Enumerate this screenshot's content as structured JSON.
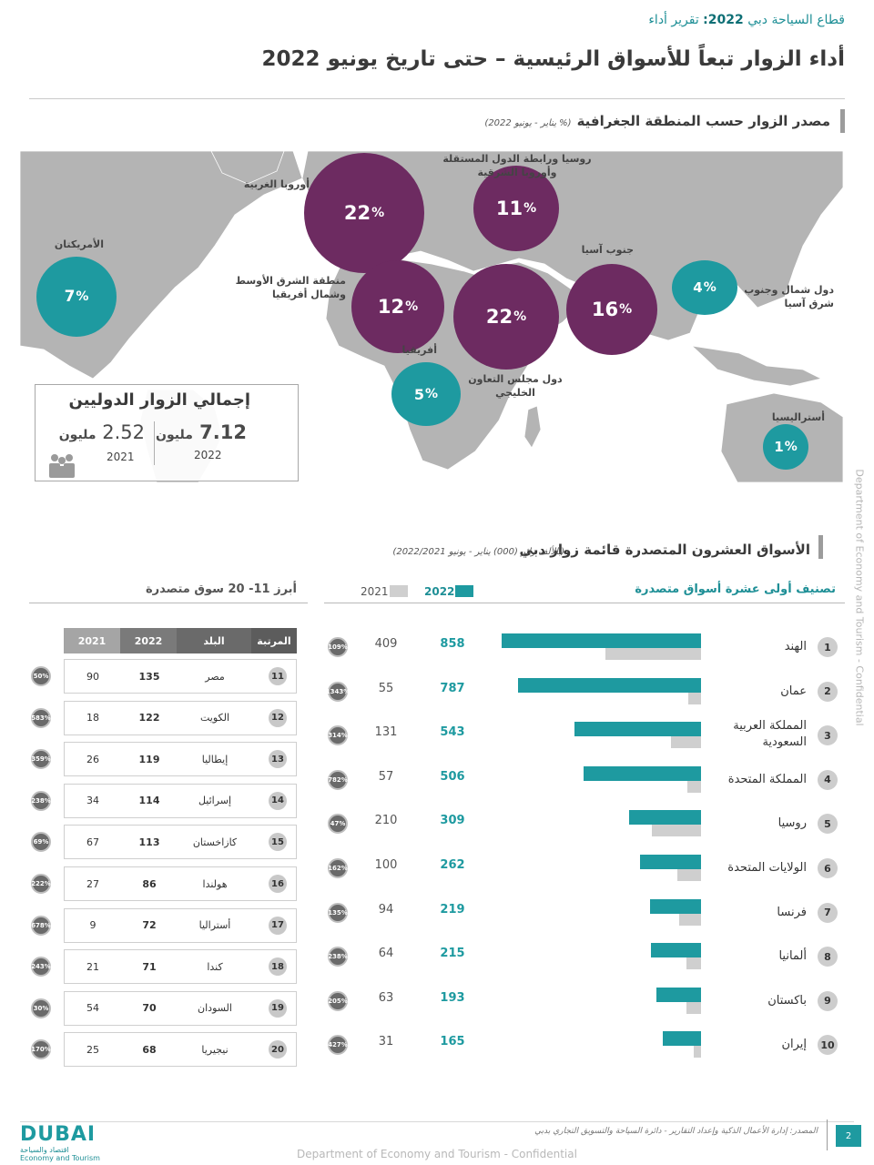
{
  "header": {
    "sector_prefix": "قطاع السياحة دبي",
    "sector_year": "2022:",
    "report_label": "تقرير أداء",
    "title": "أداء الزوار تبعاً للأسواق الرئيسية – حتى تاريخ يونيو 2022"
  },
  "geo_section": {
    "title": "مصدر الزوار حسب المنطقة الجغرافية",
    "note": "(% يناير - يونيو 2022)",
    "regions": [
      {
        "label": "أوروبا الغربية",
        "value": "22",
        "unit": "%",
        "color": "#6d2b61"
      },
      {
        "label": "روسيا ورابطة الدول المستقلة وأوروبا الشرقية",
        "value": "11",
        "unit": "%",
        "color": "#6d2b61"
      },
      {
        "label": "الأمريكتان",
        "value": "7",
        "unit": "%",
        "color": "#1e9aa0"
      },
      {
        "label": "منطقة الشرق الأوسط وشمال أفريقيا",
        "value": "12",
        "unit": "%",
        "color": "#6d2b61"
      },
      {
        "label": "دول مجلس التعاون الخليجي",
        "value": "22",
        "unit": "%",
        "color": "#6d2b61"
      },
      {
        "label": "جنوب آسيا",
        "value": "16",
        "unit": "%",
        "color": "#6d2b61"
      },
      {
        "label": "دول شمال وجنوب شرق آسيا",
        "value": "4",
        "unit": "%",
        "color": "#1e9aa0"
      },
      {
        "label": "أفريقيا",
        "value": "5",
        "unit": "%",
        "color": "#1e9aa0"
      },
      {
        "label": "أستراليسيا",
        "value": "1",
        "unit": "%",
        "color": "#1e9aa0"
      }
    ]
  },
  "totals": {
    "title": "إجمالي الزوار الدوليين",
    "v2022": "7.12",
    "v2021": "2.52",
    "unit": "مليون",
    "y2022": "2022",
    "y2021": "2021"
  },
  "vertical_text": "Department of Economy and Tourism - Confidential",
  "markets_section": {
    "title": "الأسواق العشرون المتصدرة قائمة زوار دبي",
    "note": "(بالألف زائر (000) يناير - يونيو 2022/2021)"
  },
  "table": {
    "title": "أبرز 11- 20 سوق متصدرة",
    "headers": {
      "rank": "المرتبة",
      "country": "البلد",
      "y2022": "2022",
      "y2021": "2021"
    },
    "rows": [
      {
        "rank": "11",
        "country": "مصر",
        "v2022": "135",
        "v2021": "90",
        "growth": "50%"
      },
      {
        "rank": "12",
        "country": "الكويت",
        "v2022": "122",
        "v2021": "18",
        "growth": "583%"
      },
      {
        "rank": "13",
        "country": "إيطاليا",
        "v2022": "119",
        "v2021": "26",
        "growth": "359%"
      },
      {
        "rank": "14",
        "country": "إسرائيل",
        "v2022": "114",
        "v2021": "34",
        "growth": "238%"
      },
      {
        "rank": "15",
        "country": "كازاخستان",
        "v2022": "113",
        "v2021": "67",
        "growth": "69%"
      },
      {
        "rank": "16",
        "country": "هولندا",
        "v2022": "86",
        "v2021": "27",
        "growth": "222%"
      },
      {
        "rank": "17",
        "country": "أستراليا",
        "v2022": "72",
        "v2021": "9",
        "growth": "678%"
      },
      {
        "rank": "18",
        "country": "كندا",
        "v2022": "71",
        "v2021": "21",
        "growth": "243%"
      },
      {
        "rank": "19",
        "country": "السودان",
        "v2022": "70",
        "v2021": "54",
        "growth": "30%"
      },
      {
        "rank": "20",
        "country": "نيجيريا",
        "v2022": "68",
        "v2021": "25",
        "growth": "170%"
      }
    ]
  },
  "chart_data": {
    "type": "bar",
    "title": "تصنيف أولى عشرة أسواق متصدرة",
    "legend": [
      "2022",
      "2021"
    ],
    "colors": {
      "2022": "#1e9aa0",
      "2021": "#cfcfcf"
    },
    "max_value": 900,
    "categories": [
      "الهند",
      "عمان",
      "المملكة العربية السعودية",
      "المملكة المتحدة",
      "روسيا",
      "الولايات المتحدة",
      "فرنسا",
      "ألمانيا",
      "باكستان",
      "إيران"
    ],
    "ranks": [
      "1",
      "2",
      "3",
      "4",
      "5",
      "6",
      "7",
      "8",
      "9",
      "10"
    ],
    "series": [
      {
        "name": "2022",
        "values": [
          858,
          787,
          543,
          506,
          309,
          262,
          219,
          215,
          193,
          165
        ]
      },
      {
        "name": "2021",
        "values": [
          409,
          55,
          131,
          57,
          210,
          100,
          94,
          64,
          63,
          31
        ]
      }
    ],
    "growth": [
      "109%",
      "1343%",
      "314%",
      "782%",
      "47%",
      "162%",
      "135%",
      "238%",
      "205%",
      "427%"
    ]
  },
  "footer": {
    "source": "المصدر: إدارة الأعمال الذكية وإعداد التقارير - دائرة السياحة والتسويق التجاري بدبي",
    "page_number": "2",
    "confidential": "Department of Economy and Tourism - Confidential",
    "logo_text": "DUBAI",
    "logo_ar": "اقتصاد والسياحة",
    "logo_en": "Economy and Tourism"
  }
}
